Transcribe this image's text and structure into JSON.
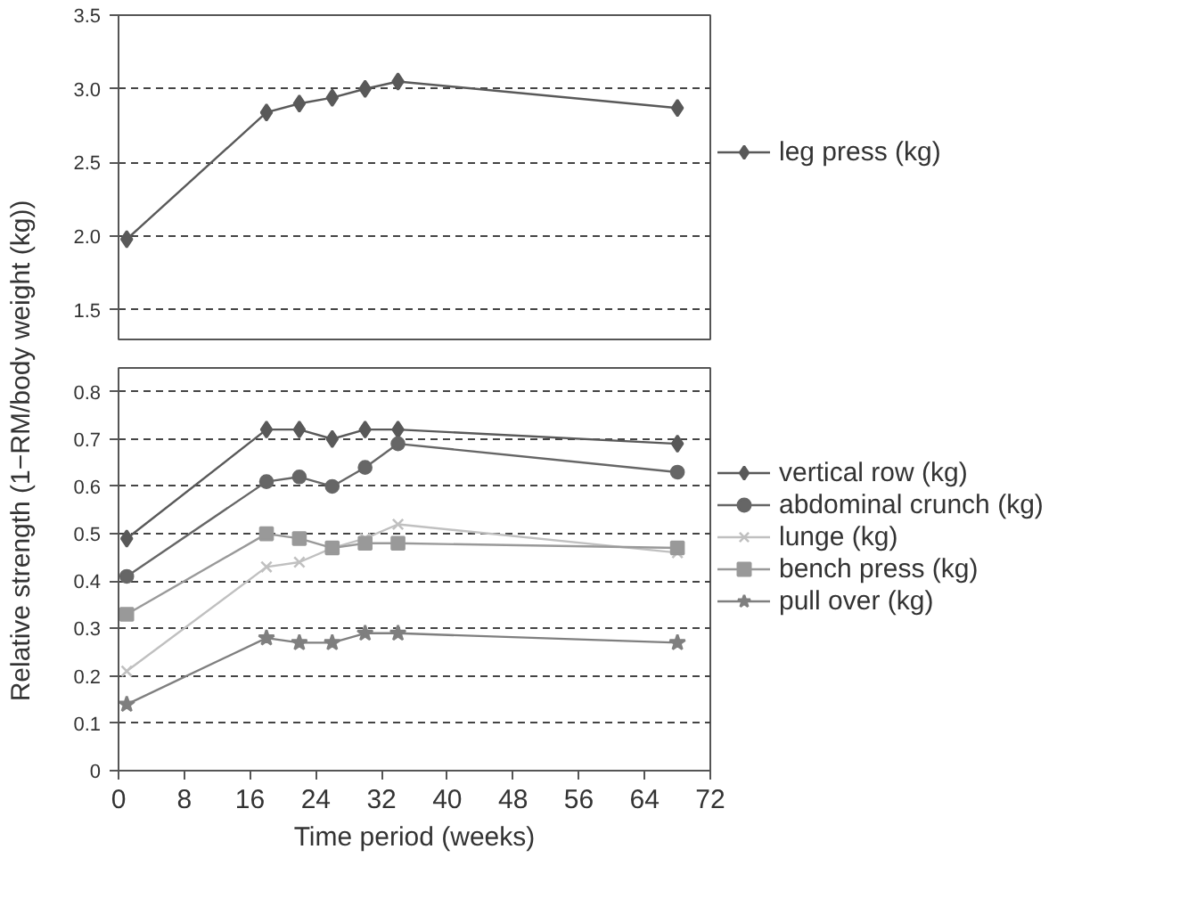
{
  "chart_data": [
    {
      "type": "line",
      "x": [
        1,
        18,
        22,
        26,
        30,
        34,
        68
      ],
      "xlim": [
        0,
        72
      ],
      "ylim": [
        1.3,
        3.5
      ],
      "yticks": [
        1.5,
        {
          "value": 2,
          "label": "2.0"
        },
        2.5,
        {
          "value": 3,
          "label": "3.0"
        },
        3.5
      ],
      "tick_labels": "y",
      "grid": "y",
      "legend": "right",
      "series": [
        {
          "name": "leg press (kg)",
          "color": "#595959",
          "marker": "diamond",
          "values": [
            1.98,
            2.84,
            2.9,
            2.94,
            3.0,
            3.05,
            2.87
          ]
        }
      ]
    },
    {
      "type": "line",
      "x": [
        1,
        18,
        22,
        26,
        30,
        34,
        68
      ],
      "xlim": [
        0,
        72
      ],
      "xticks": [
        0,
        8,
        16,
        24,
        32,
        40,
        48,
        56,
        64,
        72
      ],
      "ylim": [
        0,
        0.85
      ],
      "yticks": [
        0,
        0.1,
        0.2,
        0.3,
        0.4,
        0.5,
        0.6,
        0.7,
        0.8
      ],
      "xlabel": "Time period (weeks)",
      "ylabel": "Relative strength (1−RM/body weight (kg))",
      "grid": "y",
      "legend": "right",
      "series": [
        {
          "name": "vertical row (kg)",
          "color": "#595959",
          "marker": "diamond",
          "values": [
            0.49,
            0.72,
            0.72,
            0.7,
            0.72,
            0.72,
            0.69
          ]
        },
        {
          "name": "abdominal crunch (kg)",
          "color": "#666666",
          "marker": "circle",
          "values": [
            0.41,
            0.61,
            0.62,
            0.6,
            0.64,
            0.69,
            0.63
          ]
        },
        {
          "name": "lunge (kg)",
          "color": "#c0c0c0",
          "marker": "cross",
          "values": [
            0.21,
            0.43,
            0.44,
            0.47,
            0.49,
            0.52,
            0.46
          ]
        },
        {
          "name": "bench press (kg)",
          "color": "#999999",
          "marker": "square",
          "values": [
            0.33,
            0.5,
            0.49,
            0.47,
            0.48,
            0.48,
            0.47
          ]
        },
        {
          "name": "pull over (kg)",
          "color": "#7f7f7f",
          "marker": "star",
          "values": [
            0.14,
            0.28,
            0.27,
            0.27,
            0.29,
            0.29,
            0.27
          ]
        }
      ]
    }
  ]
}
